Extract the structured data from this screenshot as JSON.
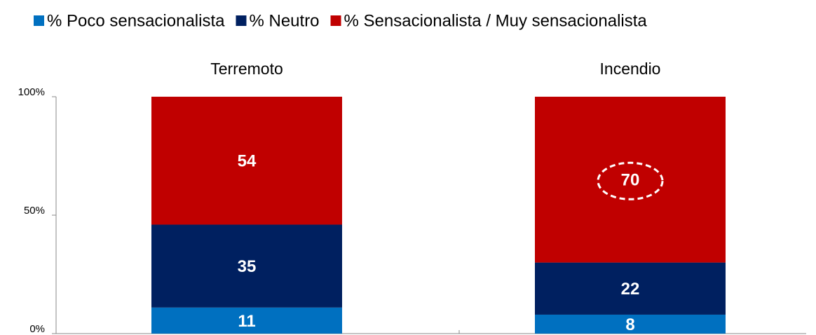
{
  "chart_data": {
    "type": "stacked_bar",
    "categories": [
      "Terremoto",
      "Incendio"
    ],
    "series": [
      {
        "name": "% Poco sensacionalista",
        "color": "#0070c0",
        "values": [
          11,
          8
        ]
      },
      {
        "name": "% Neutro",
        "color": "#002060",
        "values": [
          35,
          22
        ]
      },
      {
        "name": "% Sensacionalista / Muy sensacionalista",
        "color": "#c00000",
        "values": [
          54,
          70
        ]
      }
    ],
    "ylim": [
      0,
      100
    ],
    "yticks": [
      {
        "value": 0,
        "label": "0%"
      },
      {
        "value": 50,
        "label": "50%"
      },
      {
        "value": 100,
        "label": "100%"
      }
    ],
    "legend": "top"
  }
}
